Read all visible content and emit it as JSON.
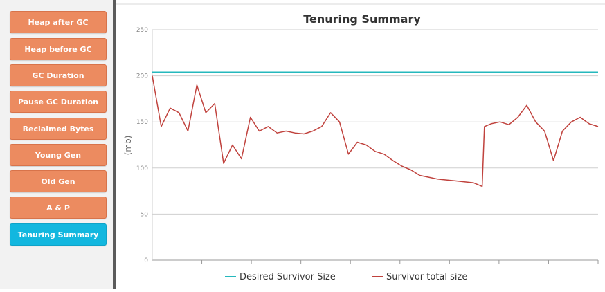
{
  "sidebar": {
    "items": [
      {
        "label": "Heap after GC",
        "active": false
      },
      {
        "label": "Heap before GC",
        "active": false
      },
      {
        "label": "GC Duration",
        "active": false
      },
      {
        "label": "Pause GC Duration",
        "active": false
      },
      {
        "label": "Reclaimed Bytes",
        "active": false
      },
      {
        "label": "Young Gen",
        "active": false
      },
      {
        "label": "Old Gen",
        "active": false
      },
      {
        "label": "A & P",
        "active": false
      },
      {
        "label": "Tenuring Summary",
        "active": true
      }
    ]
  },
  "colors": {
    "button": "#ec8b60",
    "button_active": "#12b7df",
    "desired_line": "#26b8bd",
    "survivor_line": "#c0423d"
  },
  "chart_data": {
    "type": "line",
    "title": "Tenuring Summary",
    "ylabel": "(mb)",
    "xlabel": "",
    "ylim": [
      0,
      250
    ],
    "yticks": [
      0,
      50,
      100,
      150,
      200,
      250
    ],
    "grid": true,
    "legend_position": "bottom",
    "x": [
      0,
      0.02,
      0.04,
      0.06,
      0.08,
      0.1,
      0.12,
      0.14,
      0.16,
      0.18,
      0.2,
      0.22,
      0.24,
      0.26,
      0.28,
      0.3,
      0.32,
      0.34,
      0.36,
      0.38,
      0.4,
      0.42,
      0.44,
      0.46,
      0.48,
      0.5,
      0.52,
      0.54,
      0.56,
      0.58,
      0.6,
      0.62,
      0.64,
      0.66,
      0.68,
      0.7,
      0.72,
      0.74,
      0.745,
      0.76,
      0.78,
      0.8,
      0.82,
      0.84,
      0.86,
      0.88,
      0.9,
      0.92,
      0.94,
      0.96,
      0.98,
      1.0
    ],
    "series": [
      {
        "name": "Desired Survivor Size",
        "values": [
          204,
          204,
          204,
          204,
          204,
          204,
          204,
          204,
          204,
          204,
          204,
          204,
          204,
          204,
          204,
          204,
          204,
          204,
          204,
          204,
          204,
          204,
          204,
          204,
          204,
          204,
          204,
          204,
          204,
          204,
          204,
          204,
          204,
          204,
          204,
          204,
          204,
          204,
          204,
          204,
          204,
          204,
          204,
          204,
          204,
          204,
          204,
          204,
          204,
          204,
          204,
          204
        ]
      },
      {
        "name": "Survivor total size",
        "values": [
          200,
          145,
          165,
          160,
          140,
          190,
          160,
          170,
          105,
          125,
          110,
          155,
          140,
          145,
          138,
          140,
          138,
          137,
          140,
          145,
          160,
          150,
          115,
          128,
          125,
          118,
          115,
          108,
          102,
          98,
          92,
          90,
          88,
          87,
          86,
          85,
          84,
          80,
          145,
          148,
          150,
          147,
          155,
          168,
          150,
          140,
          108,
          140,
          150,
          155,
          148,
          145
        ]
      }
    ]
  }
}
